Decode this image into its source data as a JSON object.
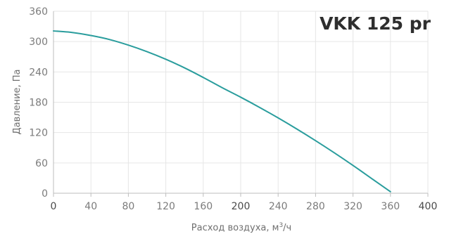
{
  "chart_data": {
    "type": "line",
    "title": "VKK 125 pr",
    "xlabel": "Расход воздуха, м",
    "xlabel_sup": "3",
    "xlabel_suffix": "/ч",
    "ylabel": "Давление, Па",
    "xlim": [
      0,
      400
    ],
    "ylim": [
      0,
      360
    ],
    "x_ticks": [
      0,
      40,
      80,
      120,
      160,
      200,
      240,
      280,
      320,
      360,
      400
    ],
    "y_ticks": [
      0,
      60,
      120,
      180,
      240,
      300,
      360
    ],
    "dark_x_ticks": [
      0,
      200,
      400
    ],
    "grid": true,
    "series": [
      {
        "color": "#2a9d9d",
        "x": [
          0,
          20,
          40,
          60,
          80,
          100,
          120,
          140,
          160,
          180,
          200,
          220,
          240,
          260,
          280,
          300,
          320,
          340,
          360
        ],
        "y": [
          321,
          318,
          312,
          304,
          293,
          280,
          265,
          248,
          229,
          209,
          190,
          170,
          149,
          127,
          104,
          80,
          55,
          29,
          3
        ]
      }
    ]
  }
}
